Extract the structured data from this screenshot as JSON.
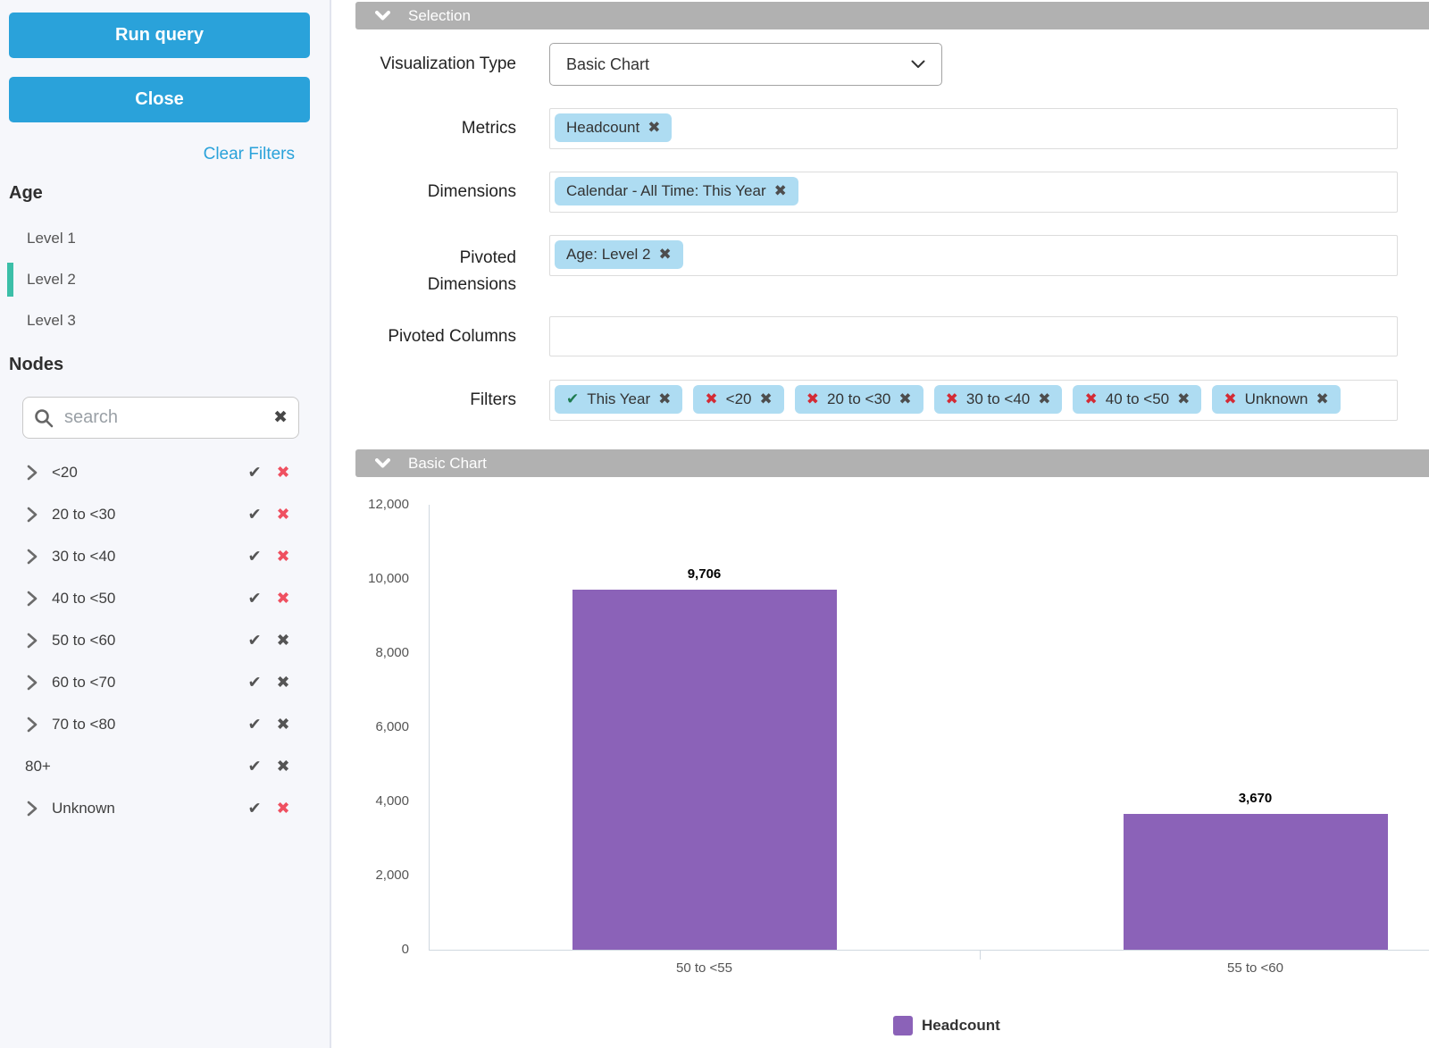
{
  "sidebar": {
    "run_query_label": "Run query",
    "close_label": "Close",
    "clear_filters_label": "Clear Filters",
    "age_heading": "Age",
    "levels": [
      {
        "label": "Level 1",
        "selected": false
      },
      {
        "label": "Level 2",
        "selected": true
      },
      {
        "label": "Level 3",
        "selected": false
      }
    ],
    "nodes_heading": "Nodes",
    "search_placeholder": "search",
    "nodes": [
      {
        "label": "<20",
        "chevron": true,
        "exclude_active": true
      },
      {
        "label": "20 to <30",
        "chevron": true,
        "exclude_active": true
      },
      {
        "label": "30 to <40",
        "chevron": true,
        "exclude_active": true
      },
      {
        "label": "40 to <50",
        "chevron": true,
        "exclude_active": true
      },
      {
        "label": "50 to <60",
        "chevron": true,
        "exclude_active": false
      },
      {
        "label": "60 to <70",
        "chevron": true,
        "exclude_active": false
      },
      {
        "label": "70 to <80",
        "chevron": true,
        "exclude_active": false
      },
      {
        "label": "80+",
        "chevron": false,
        "exclude_active": false
      },
      {
        "label": "Unknown",
        "chevron": true,
        "exclude_active": true
      }
    ]
  },
  "selection": {
    "header": "Selection",
    "fields": {
      "visualization_type": {
        "label": "Visualization Type",
        "value": "Basic Chart"
      },
      "metrics": {
        "label": "Metrics",
        "chips": [
          {
            "text": "Headcount"
          }
        ]
      },
      "dimensions": {
        "label": "Dimensions",
        "chips": [
          {
            "text": "Calendar - All Time: This Year"
          }
        ]
      },
      "pivoted_dimensions": {
        "label": "Pivoted Dimensions",
        "chips": [
          {
            "text": "Age: Level 2"
          }
        ]
      },
      "pivoted_columns": {
        "label": "Pivoted Columns",
        "chips": []
      },
      "filters": {
        "label": "Filters",
        "chips": [
          {
            "text": "This Year",
            "state": "include"
          },
          {
            "text": "<20",
            "state": "exclude"
          },
          {
            "text": "20 to <30",
            "state": "exclude"
          },
          {
            "text": "30 to <40",
            "state": "exclude"
          },
          {
            "text": "40 to <50",
            "state": "exclude"
          },
          {
            "text": "Unknown",
            "state": "exclude"
          }
        ]
      }
    }
  },
  "chart_section": {
    "header": "Basic Chart"
  },
  "chart_data": {
    "type": "bar",
    "title": "",
    "categories": [
      "50 to <55",
      "55 to <60"
    ],
    "series": [
      {
        "name": "Headcount",
        "values": [
          9706,
          3670
        ],
        "color": "#8b62b8"
      }
    ],
    "value_labels": [
      "9,706",
      "3,670"
    ],
    "xlabel": "",
    "ylabel": "",
    "ylim": [
      0,
      12000
    ],
    "yticks": [
      0,
      2000,
      4000,
      6000,
      8000,
      10000,
      12000
    ],
    "ytick_labels": [
      "0",
      "2,000",
      "4,000",
      "6,000",
      "8,000",
      "10,000",
      "12,000"
    ],
    "grid": false,
    "legend": {
      "position": "bottom",
      "items": [
        "Headcount"
      ]
    }
  },
  "colors": {
    "accent_blue": "#2aa2da",
    "chip_blue": "#aedcf2",
    "bar_purple": "#8b62b8",
    "selected_teal": "#3cbfa8",
    "exclude_red": "#ef5060",
    "filter_red": "#d32b35",
    "include_green": "#1e7b4f",
    "section_gray": "#b1b1b1",
    "axis_gray": "#cfd8e0"
  }
}
